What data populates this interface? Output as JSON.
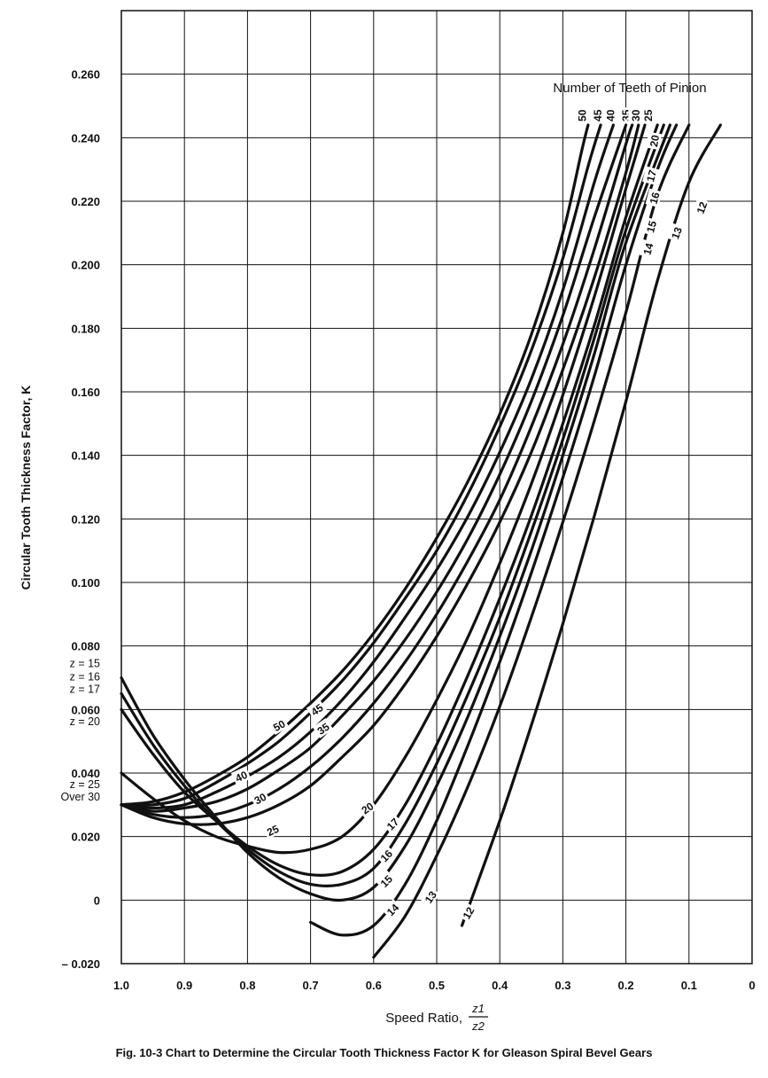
{
  "chart_data": {
    "type": "line",
    "title": "Fig. 10-3 Chart to Determine the Circular Tooth Thickness Factor K for Gleason Spiral Bevel Gears",
    "xlabel": "Speed Ratio,",
    "xlabel_fraction": {
      "numerator": "z1",
      "denominator": "z2"
    },
    "ylabel": "Circular Tooth Thickness Factor, K",
    "legend_title": "Number of Teeth of Pinion",
    "x_reversed": true,
    "xlim": [
      1.0,
      0
    ],
    "ylim": [
      -0.02,
      0.28
    ],
    "grid": true,
    "x_ticks": [
      "1.0",
      "0.9",
      "0.8",
      "0.7",
      "0.6",
      "0.5",
      "0.4",
      "0.3",
      "0.2",
      "0.1",
      "0"
    ],
    "y_ticks": [
      "0.260",
      "0.240",
      "0.220",
      "0.200",
      "0.180",
      "0.160",
      "0.140",
      "0.120",
      "0.100",
      "0.080",
      "0.060",
      "0.040",
      "0.020",
      "0",
      "– 0.020"
    ],
    "y_side_labels": [
      "z = 15",
      "z = 16",
      "z = 17",
      "z = 20",
      "z = 25",
      "Over 30"
    ],
    "series": [
      {
        "name": "50",
        "points": [
          [
            1.0,
            0.03
          ],
          [
            0.95,
            0.031
          ],
          [
            0.9,
            0.034
          ],
          [
            0.85,
            0.039
          ],
          [
            0.8,
            0.045
          ],
          [
            0.75,
            0.053
          ],
          [
            0.7,
            0.062
          ],
          [
            0.65,
            0.072
          ],
          [
            0.6,
            0.084
          ],
          [
            0.55,
            0.098
          ],
          [
            0.5,
            0.114
          ],
          [
            0.45,
            0.132
          ],
          [
            0.4,
            0.153
          ],
          [
            0.35,
            0.178
          ],
          [
            0.3,
            0.21
          ],
          [
            0.27,
            0.236
          ],
          [
            0.26,
            0.244
          ]
        ]
      },
      {
        "name": "45",
        "points": [
          [
            1.0,
            0.03
          ],
          [
            0.95,
            0.03
          ],
          [
            0.9,
            0.032
          ],
          [
            0.85,
            0.037
          ],
          [
            0.8,
            0.043
          ],
          [
            0.75,
            0.05
          ],
          [
            0.7,
            0.059
          ],
          [
            0.65,
            0.069
          ],
          [
            0.6,
            0.081
          ],
          [
            0.55,
            0.095
          ],
          [
            0.5,
            0.11
          ],
          [
            0.45,
            0.128
          ],
          [
            0.4,
            0.149
          ],
          [
            0.35,
            0.173
          ],
          [
            0.3,
            0.202
          ],
          [
            0.26,
            0.231
          ],
          [
            0.24,
            0.244
          ]
        ]
      },
      {
        "name": "40",
        "points": [
          [
            1.0,
            0.03
          ],
          [
            0.95,
            0.029
          ],
          [
            0.9,
            0.03
          ],
          [
            0.85,
            0.034
          ],
          [
            0.8,
            0.039
          ],
          [
            0.75,
            0.045
          ],
          [
            0.7,
            0.053
          ],
          [
            0.65,
            0.063
          ],
          [
            0.6,
            0.075
          ],
          [
            0.55,
            0.089
          ],
          [
            0.5,
            0.104
          ],
          [
            0.45,
            0.121
          ],
          [
            0.4,
            0.141
          ],
          [
            0.35,
            0.164
          ],
          [
            0.3,
            0.192
          ],
          [
            0.25,
            0.226
          ],
          [
            0.22,
            0.244
          ]
        ]
      },
      {
        "name": "35",
        "points": [
          [
            1.0,
            0.03
          ],
          [
            0.95,
            0.028
          ],
          [
            0.9,
            0.029
          ],
          [
            0.85,
            0.031
          ],
          [
            0.8,
            0.035
          ],
          [
            0.75,
            0.041
          ],
          [
            0.7,
            0.048
          ],
          [
            0.65,
            0.058
          ],
          [
            0.6,
            0.069
          ],
          [
            0.55,
            0.082
          ],
          [
            0.5,
            0.097
          ],
          [
            0.45,
            0.114
          ],
          [
            0.4,
            0.134
          ],
          [
            0.35,
            0.157
          ],
          [
            0.3,
            0.184
          ],
          [
            0.25,
            0.215
          ],
          [
            0.2,
            0.244
          ]
        ]
      },
      {
        "name": "30",
        "points": [
          [
            1.0,
            0.03
          ],
          [
            0.95,
            0.027
          ],
          [
            0.9,
            0.026
          ],
          [
            0.85,
            0.027
          ],
          [
            0.8,
            0.03
          ],
          [
            0.75,
            0.035
          ],
          [
            0.7,
            0.042
          ],
          [
            0.65,
            0.051
          ],
          [
            0.6,
            0.062
          ],
          [
            0.55,
            0.075
          ],
          [
            0.5,
            0.09
          ],
          [
            0.45,
            0.107
          ],
          [
            0.4,
            0.126
          ],
          [
            0.35,
            0.149
          ],
          [
            0.3,
            0.175
          ],
          [
            0.25,
            0.205
          ],
          [
            0.2,
            0.238
          ],
          [
            0.19,
            0.244
          ]
        ]
      },
      {
        "name": "25",
        "points": [
          [
            1.0,
            0.03
          ],
          [
            0.95,
            0.026
          ],
          [
            0.9,
            0.024
          ],
          [
            0.85,
            0.024
          ],
          [
            0.8,
            0.026
          ],
          [
            0.75,
            0.03
          ],
          [
            0.7,
            0.036
          ],
          [
            0.65,
            0.045
          ],
          [
            0.6,
            0.055
          ],
          [
            0.55,
            0.068
          ],
          [
            0.5,
            0.083
          ],
          [
            0.45,
            0.1
          ],
          [
            0.4,
            0.119
          ],
          [
            0.35,
            0.141
          ],
          [
            0.3,
            0.167
          ],
          [
            0.25,
            0.196
          ],
          [
            0.2,
            0.229
          ],
          [
            0.18,
            0.244
          ]
        ]
      },
      {
        "name": "20",
        "points": [
          [
            1.0,
            0.04
          ],
          [
            0.95,
            0.032
          ],
          [
            0.9,
            0.025
          ],
          [
            0.85,
            0.02
          ],
          [
            0.8,
            0.017
          ],
          [
            0.75,
            0.015
          ],
          [
            0.7,
            0.016
          ],
          [
            0.65,
            0.02
          ],
          [
            0.6,
            0.03
          ],
          [
            0.55,
            0.045
          ],
          [
            0.5,
            0.063
          ],
          [
            0.45,
            0.083
          ],
          [
            0.4,
            0.106
          ],
          [
            0.35,
            0.131
          ],
          [
            0.3,
            0.159
          ],
          [
            0.25,
            0.19
          ],
          [
            0.2,
            0.224
          ],
          [
            0.17,
            0.244
          ]
        ]
      },
      {
        "name": "17",
        "points": [
          [
            1.0,
            0.06
          ],
          [
            0.95,
            0.046
          ],
          [
            0.9,
            0.034
          ],
          [
            0.85,
            0.025
          ],
          [
            0.8,
            0.017
          ],
          [
            0.75,
            0.011
          ],
          [
            0.7,
            0.008
          ],
          [
            0.65,
            0.009
          ],
          [
            0.6,
            0.016
          ],
          [
            0.55,
            0.03
          ],
          [
            0.5,
            0.049
          ],
          [
            0.45,
            0.071
          ],
          [
            0.4,
            0.095
          ],
          [
            0.35,
            0.121
          ],
          [
            0.3,
            0.15
          ],
          [
            0.25,
            0.181
          ],
          [
            0.2,
            0.215
          ],
          [
            0.15,
            0.244
          ]
        ]
      },
      {
        "name": "16",
        "points": [
          [
            1.0,
            0.065
          ],
          [
            0.95,
            0.049
          ],
          [
            0.9,
            0.036
          ],
          [
            0.85,
            0.025
          ],
          [
            0.8,
            0.016
          ],
          [
            0.75,
            0.009
          ],
          [
            0.7,
            0.005
          ],
          [
            0.65,
            0.005
          ],
          [
            0.6,
            0.01
          ],
          [
            0.55,
            0.024
          ],
          [
            0.5,
            0.043
          ],
          [
            0.45,
            0.065
          ],
          [
            0.4,
            0.089
          ],
          [
            0.35,
            0.116
          ],
          [
            0.3,
            0.145
          ],
          [
            0.25,
            0.177
          ],
          [
            0.2,
            0.211
          ],
          [
            0.14,
            0.244
          ]
        ]
      },
      {
        "name": "15",
        "points": [
          [
            1.0,
            0.07
          ],
          [
            0.95,
            0.052
          ],
          [
            0.9,
            0.038
          ],
          [
            0.85,
            0.026
          ],
          [
            0.8,
            0.015
          ],
          [
            0.75,
            0.007
          ],
          [
            0.7,
            0.002
          ],
          [
            0.65,
            0.0
          ],
          [
            0.6,
            0.004
          ],
          [
            0.55,
            0.017
          ],
          [
            0.5,
            0.036
          ],
          [
            0.45,
            0.058
          ],
          [
            0.4,
            0.083
          ],
          [
            0.35,
            0.11
          ],
          [
            0.3,
            0.14
          ],
          [
            0.25,
            0.172
          ],
          [
            0.2,
            0.207
          ],
          [
            0.13,
            0.244
          ]
        ]
      },
      {
        "name": "14",
        "points": [
          [
            0.7,
            -0.007
          ],
          [
            0.65,
            -0.011
          ],
          [
            0.6,
            -0.008
          ],
          [
            0.55,
            0.005
          ],
          [
            0.5,
            0.025
          ],
          [
            0.45,
            0.049
          ],
          [
            0.4,
            0.075
          ],
          [
            0.35,
            0.103
          ],
          [
            0.3,
            0.133
          ],
          [
            0.25,
            0.165
          ],
          [
            0.2,
            0.2
          ],
          [
            0.15,
            0.23
          ],
          [
            0.12,
            0.244
          ]
        ]
      },
      {
        "name": "13",
        "points": [
          [
            0.6,
            -0.018
          ],
          [
            0.55,
            -0.005
          ],
          [
            0.5,
            0.014
          ],
          [
            0.45,
            0.036
          ],
          [
            0.4,
            0.061
          ],
          [
            0.35,
            0.089
          ],
          [
            0.3,
            0.119
          ],
          [
            0.25,
            0.151
          ],
          [
            0.2,
            0.185
          ],
          [
            0.15,
            0.222
          ],
          [
            0.1,
            0.244
          ]
        ]
      },
      {
        "name": "12",
        "points": [
          [
            0.46,
            -0.008
          ],
          [
            0.4,
            0.025
          ],
          [
            0.35,
            0.055
          ],
          [
            0.3,
            0.087
          ],
          [
            0.25,
            0.121
          ],
          [
            0.2,
            0.157
          ],
          [
            0.15,
            0.195
          ],
          [
            0.1,
            0.226
          ],
          [
            0.05,
            0.244
          ]
        ]
      }
    ],
    "curve_labels": [
      {
        "text": "50",
        "x": 0.75,
        "y": 0.055,
        "angle": -30
      },
      {
        "text": "45",
        "x": 0.69,
        "y": 0.06,
        "angle": -35
      },
      {
        "text": "35",
        "x": 0.68,
        "y": 0.054,
        "angle": -35
      },
      {
        "text": "40",
        "x": 0.81,
        "y": 0.039,
        "angle": -25
      },
      {
        "text": "30",
        "x": 0.78,
        "y": 0.032,
        "angle": -28
      },
      {
        "text": "25",
        "x": 0.76,
        "y": 0.022,
        "angle": -25
      },
      {
        "text": "20",
        "x": 0.61,
        "y": 0.029,
        "angle": -35
      },
      {
        "text": "17",
        "x": 0.57,
        "y": 0.024,
        "angle": -45
      },
      {
        "text": "16",
        "x": 0.58,
        "y": 0.014,
        "angle": -45
      },
      {
        "text": "15",
        "x": 0.58,
        "y": 0.006,
        "angle": -45
      },
      {
        "text": "14",
        "x": 0.57,
        "y": -0.003,
        "angle": -45
      },
      {
        "text": "13",
        "x": 0.51,
        "y": 0.001,
        "angle": -55
      },
      {
        "text": "12",
        "x": 0.45,
        "y": -0.004,
        "angle": -60
      },
      {
        "text": "50",
        "x": 0.27,
        "y": 0.247,
        "angle": -90
      },
      {
        "text": "45",
        "x": 0.245,
        "y": 0.247,
        "angle": -90
      },
      {
        "text": "40",
        "x": 0.225,
        "y": 0.247,
        "angle": -90
      },
      {
        "text": "35",
        "x": 0.2,
        "y": 0.247,
        "angle": -90
      },
      {
        "text": "30",
        "x": 0.185,
        "y": 0.247,
        "angle": -90
      },
      {
        "text": "25",
        "x": 0.165,
        "y": 0.247,
        "angle": -90
      },
      {
        "text": "20",
        "x": 0.155,
        "y": 0.239,
        "angle": -80
      },
      {
        "text": "17",
        "x": 0.16,
        "y": 0.228,
        "angle": -75
      },
      {
        "text": "16",
        "x": 0.155,
        "y": 0.221,
        "angle": -75
      },
      {
        "text": "15",
        "x": 0.16,
        "y": 0.212,
        "angle": -75
      },
      {
        "text": "14",
        "x": 0.165,
        "y": 0.205,
        "angle": -75
      },
      {
        "text": "13",
        "x": 0.12,
        "y": 0.21,
        "angle": -70
      },
      {
        "text": "12",
        "x": 0.08,
        "y": 0.218,
        "angle": -70
      }
    ]
  }
}
